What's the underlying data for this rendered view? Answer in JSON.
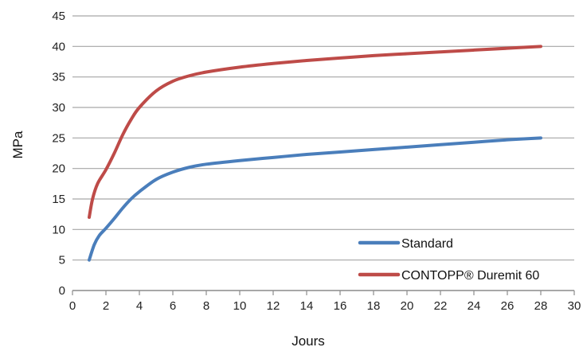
{
  "chart_data": {
    "type": "line",
    "title": "",
    "xlabel": "Jours",
    "ylabel": "MPa",
    "xlim": [
      0,
      30
    ],
    "ylim": [
      0,
      45
    ],
    "x_ticks": [
      0,
      2,
      4,
      6,
      8,
      10,
      12,
      14,
      16,
      18,
      20,
      22,
      24,
      26,
      28,
      30
    ],
    "y_ticks": [
      0,
      5,
      10,
      15,
      20,
      25,
      30,
      35,
      40,
      45
    ],
    "grid": "horizontal",
    "legend_position": "bottom-right",
    "series": [
      {
        "name": "Standard",
        "color": "#4a7ebb",
        "points": [
          [
            1,
            5
          ],
          [
            1.3,
            7.5
          ],
          [
            1.6,
            9
          ],
          [
            2,
            10.2
          ],
          [
            2.5,
            11.8
          ],
          [
            3,
            13.5
          ],
          [
            3.5,
            15
          ],
          [
            4,
            16.2
          ],
          [
            5,
            18.2
          ],
          [
            6,
            19.4
          ],
          [
            7,
            20.2
          ],
          [
            8,
            20.7
          ],
          [
            10,
            21.3
          ],
          [
            12,
            21.8
          ],
          [
            14,
            22.3
          ],
          [
            16,
            22.7
          ],
          [
            18,
            23.1
          ],
          [
            20,
            23.5
          ],
          [
            22,
            23.9
          ],
          [
            24,
            24.3
          ],
          [
            26,
            24.7
          ],
          [
            28,
            25
          ]
        ]
      },
      {
        "name": "CONTOPP® Duremit 60",
        "color": "#be4b48",
        "points": [
          [
            1,
            12
          ],
          [
            1.2,
            15
          ],
          [
            1.5,
            17.5
          ],
          [
            2,
            19.8
          ],
          [
            2.5,
            22.5
          ],
          [
            3,
            25.5
          ],
          [
            3.5,
            28
          ],
          [
            4,
            30
          ],
          [
            5,
            32.7
          ],
          [
            6,
            34.3
          ],
          [
            7,
            35.2
          ],
          [
            8,
            35.8
          ],
          [
            10,
            36.6
          ],
          [
            12,
            37.2
          ],
          [
            14,
            37.7
          ],
          [
            16,
            38.1
          ],
          [
            18,
            38.5
          ],
          [
            20,
            38.8
          ],
          [
            22,
            39.1
          ],
          [
            24,
            39.4
          ],
          [
            26,
            39.7
          ],
          [
            28,
            40
          ]
        ]
      }
    ]
  }
}
